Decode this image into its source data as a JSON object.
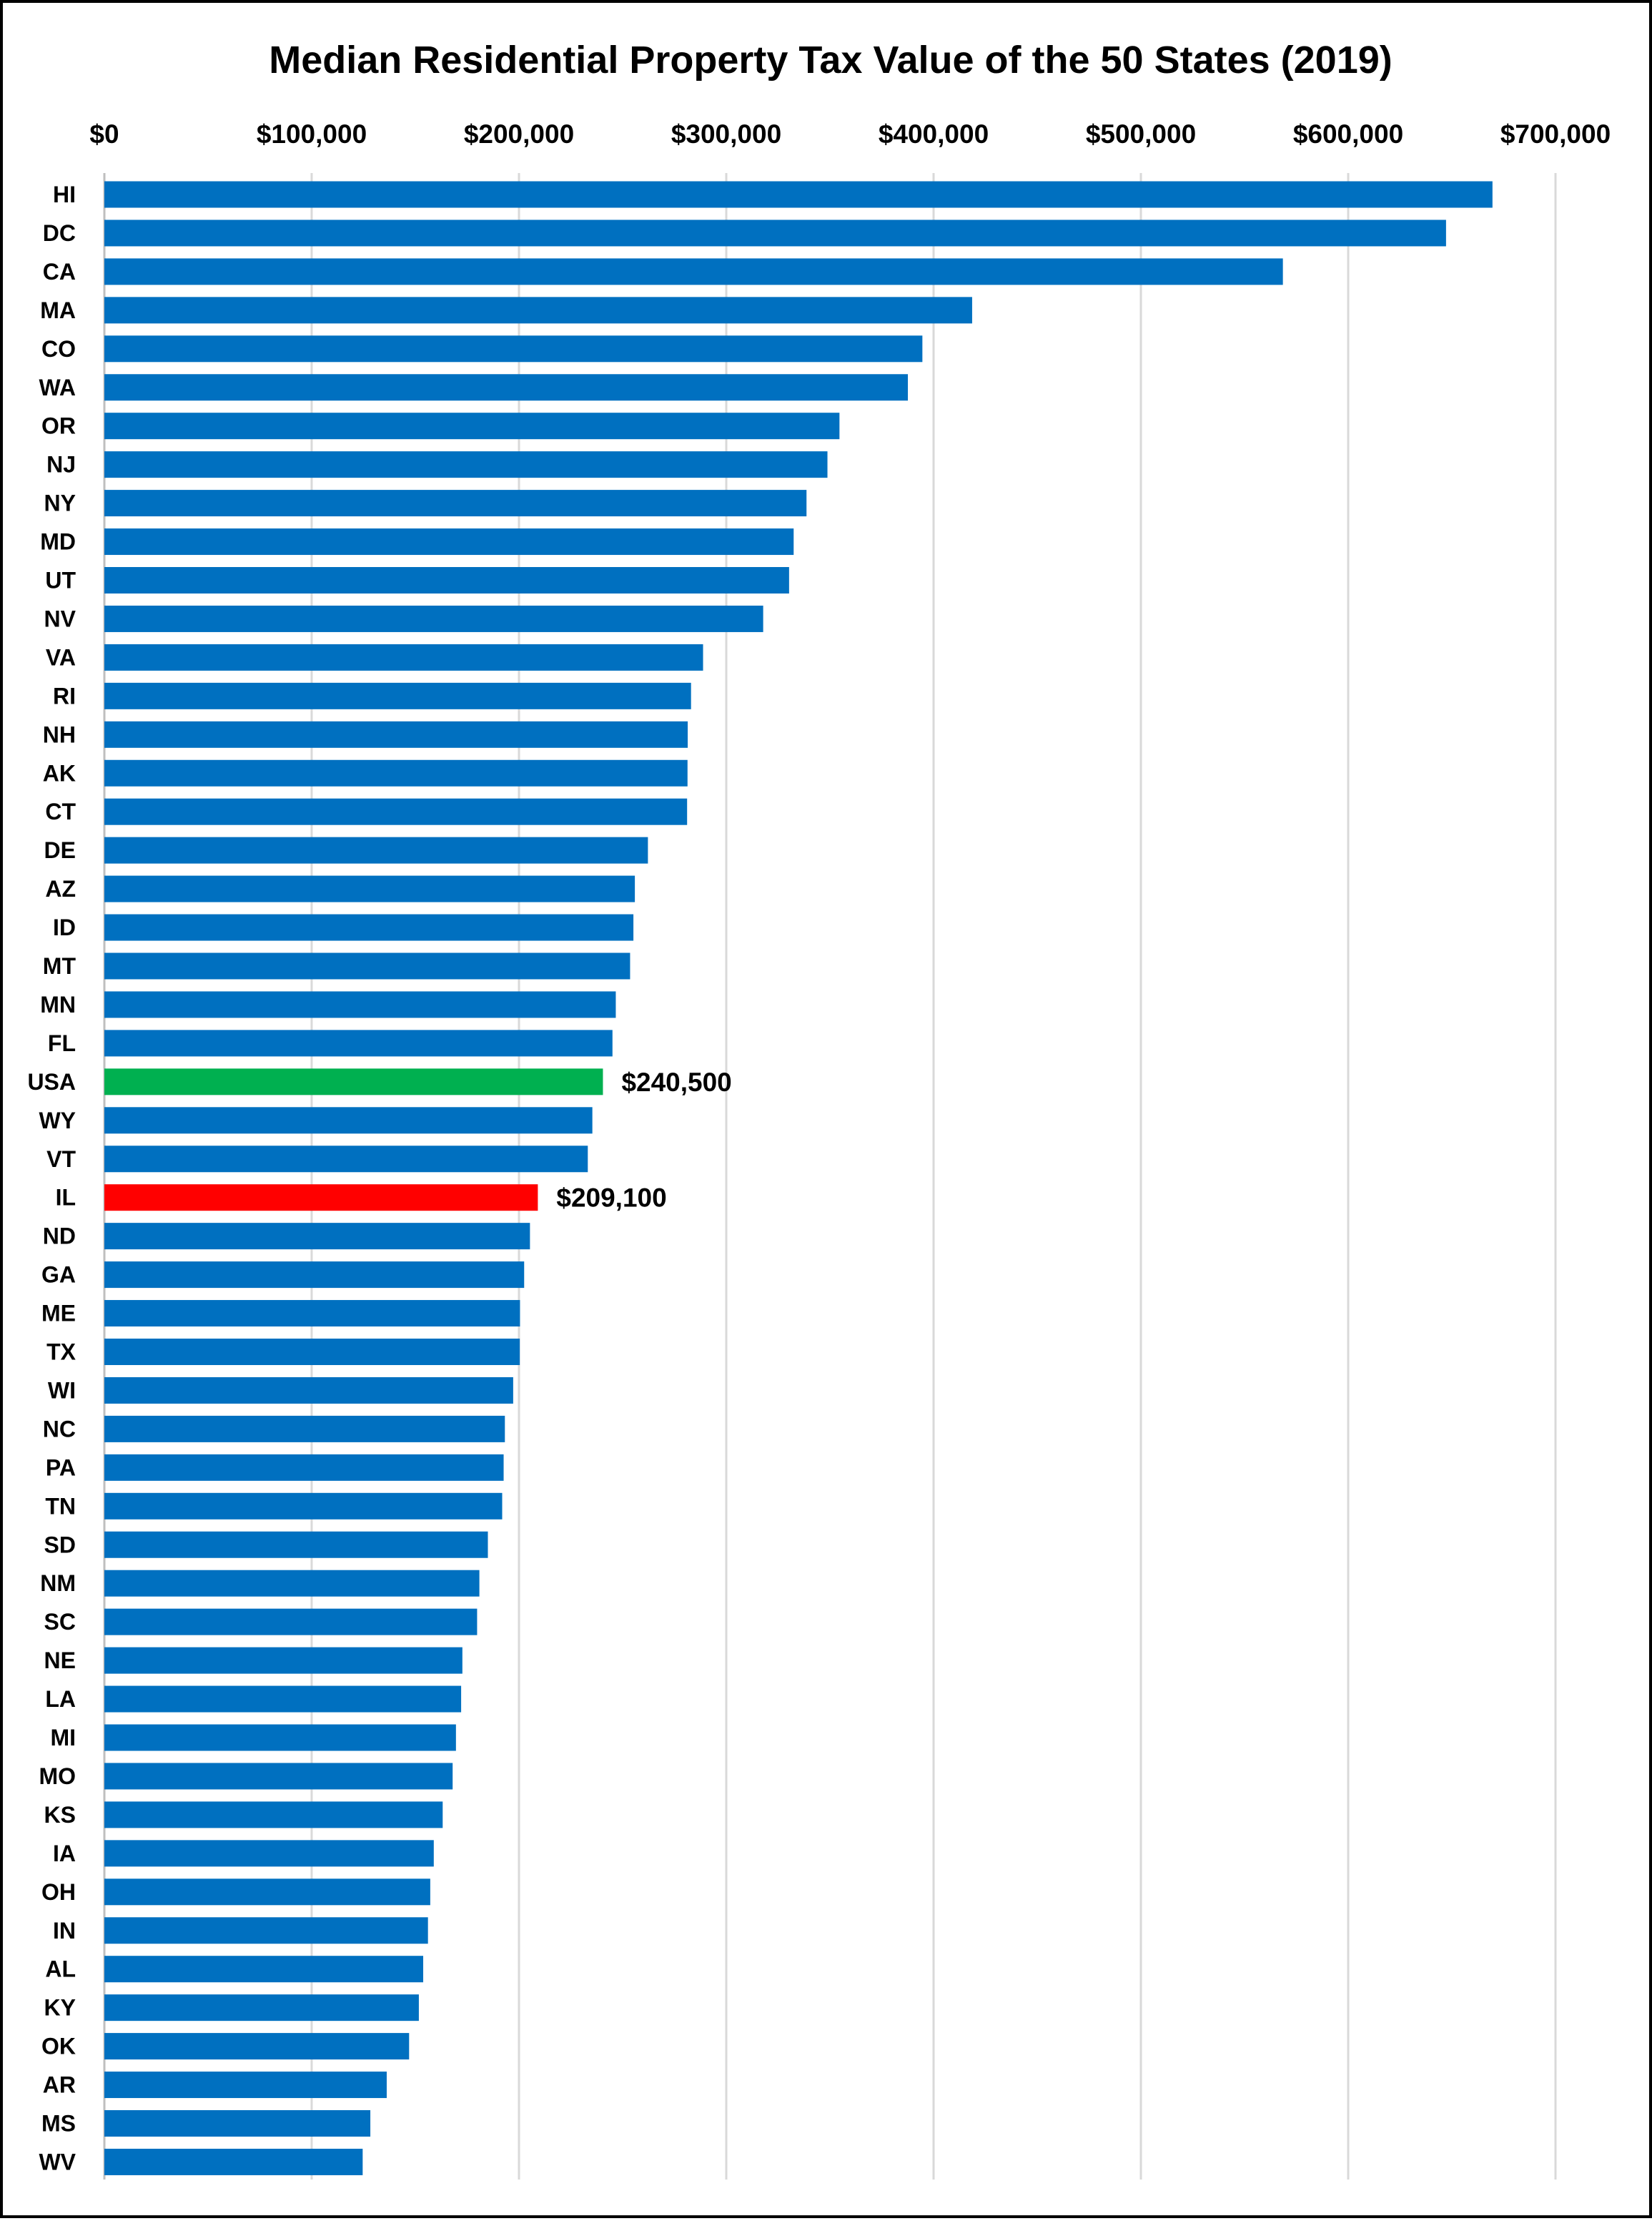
{
  "chart_data": {
    "type": "bar",
    "orientation": "horizontal",
    "title": "Median Residential Property Tax Value of the 50 States (2019)",
    "xlabel": "",
    "ylabel": "",
    "xlim": [
      0,
      700000
    ],
    "x_ticks": [
      0,
      100000,
      200000,
      300000,
      400000,
      500000,
      600000,
      700000
    ],
    "x_tick_labels": [
      "$0",
      "$100,000",
      "$200,000",
      "$300,000",
      "$400,000",
      "$500,000",
      "$600,000",
      "$700,000"
    ],
    "x_axis_position": "top",
    "grid": "vertical",
    "legend": "none",
    "colors": {
      "default": "#0070C0",
      "USA": "#00B050",
      "IL": "#FF0000"
    },
    "categories": [
      "HI",
      "DC",
      "CA",
      "MA",
      "CO",
      "WA",
      "OR",
      "NJ",
      "NY",
      "MD",
      "UT",
      "NV",
      "VA",
      "RI",
      "NH",
      "AK",
      "CT",
      "DE",
      "AZ",
      "ID",
      "MT",
      "MN",
      "FL",
      "USA",
      "WY",
      "VT",
      "IL",
      "ND",
      "GA",
      "ME",
      "TX",
      "WI",
      "NC",
      "PA",
      "TN",
      "SD",
      "NM",
      "SC",
      "NE",
      "LA",
      "MI",
      "MO",
      "KS",
      "IA",
      "OH",
      "IN",
      "AL",
      "KY",
      "OK",
      "AR",
      "MS",
      "WV"
    ],
    "values": [
      669600,
      647200,
      568500,
      418600,
      394600,
      387600,
      354600,
      348800,
      338700,
      332500,
      330300,
      317800,
      288800,
      283000,
      281400,
      281300,
      281100,
      262200,
      255900,
      255200,
      253600,
      246700,
      245100,
      240500,
      235400,
      233200,
      209100,
      205300,
      202500,
      200500,
      200400,
      197200,
      193200,
      192600,
      191900,
      185000,
      180900,
      179800,
      172700,
      172100,
      169600,
      168000,
      163200,
      158900,
      157200,
      156100,
      153800,
      151700,
      147000,
      136200,
      128300,
      124600
    ],
    "data_labels": [
      {
        "category": "USA",
        "text": "$240,500"
      },
      {
        "category": "IL",
        "text": "$209,100"
      }
    ]
  }
}
